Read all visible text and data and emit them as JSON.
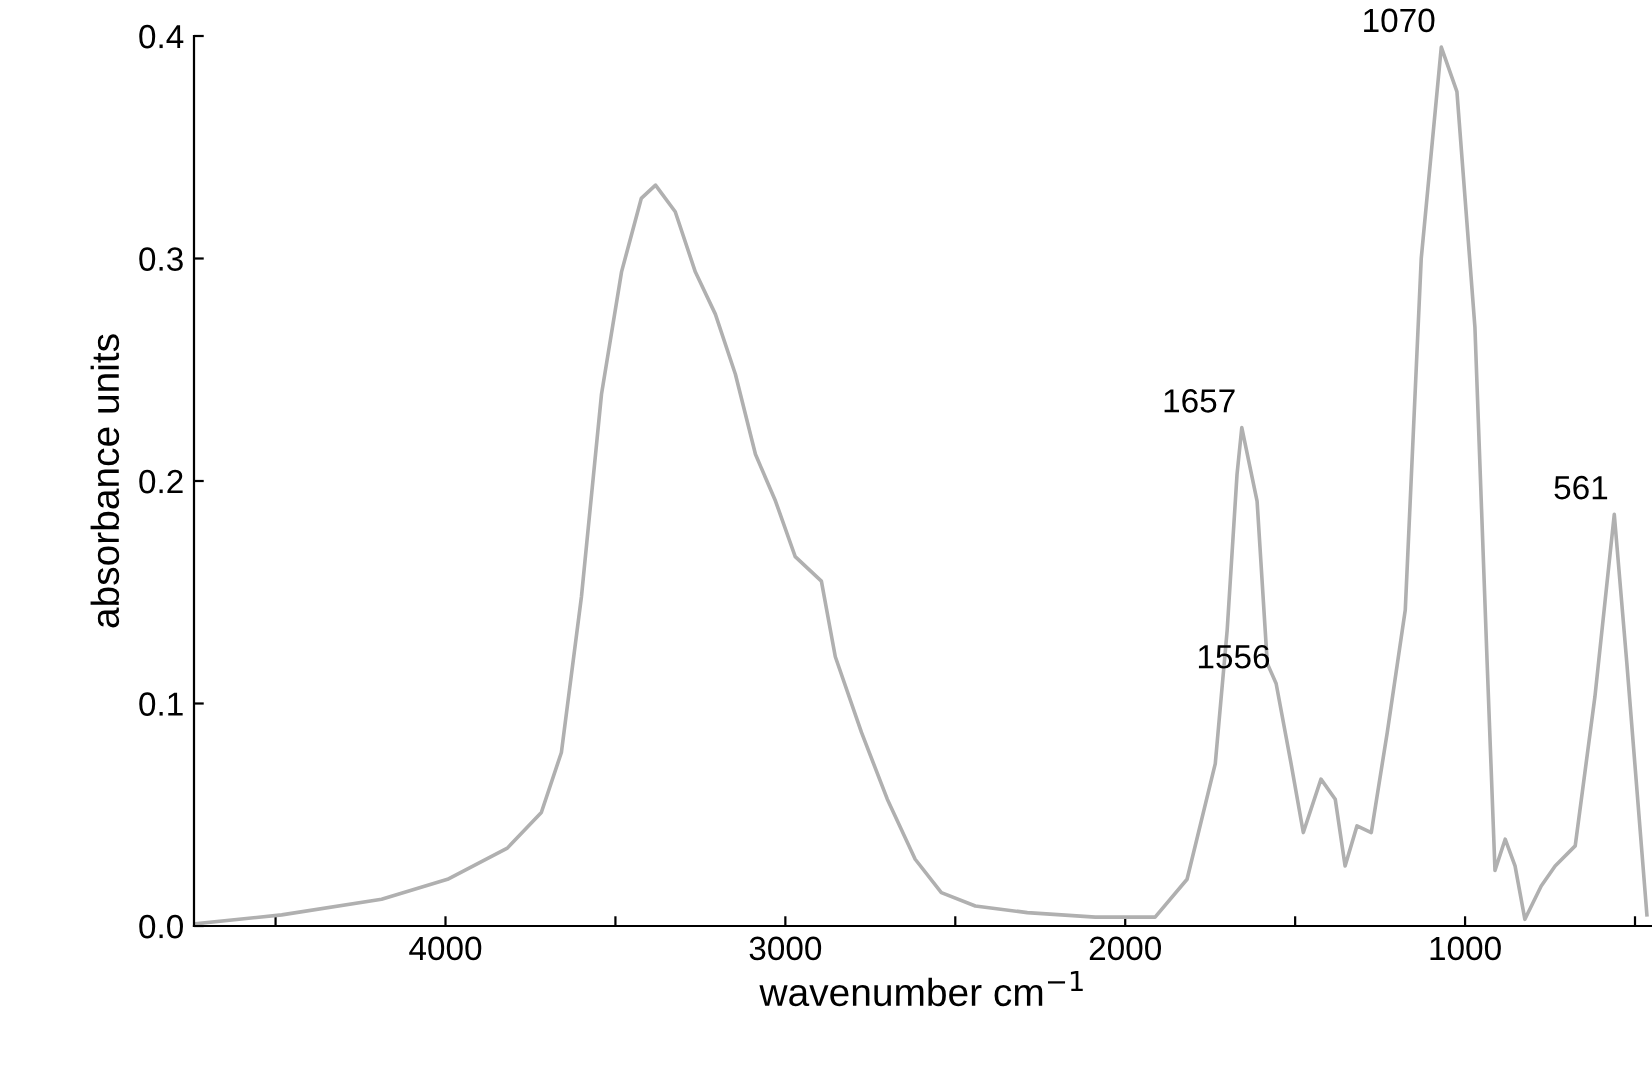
{
  "chart_data": {
    "type": "line",
    "xlabel": "wavenumber cm$^{−1}$",
    "ylabel": "absorbance units",
    "x": [
      4737,
      4482,
      4188,
      3994,
      3818,
      3718,
      3659,
      3600,
      3541,
      3482,
      3424,
      3382,
      3324,
      3265,
      3206,
      3147,
      3088,
      3029,
      2971,
      2894,
      2853,
      2776,
      2700,
      2618,
      2541,
      2441,
      2288,
      2088,
      1912,
      1818,
      1735,
      1700,
      1671,
      1657,
      1612,
      1582,
      1556,
      1512,
      1476,
      1424,
      1382,
      1353,
      1318,
      1276,
      1229,
      1176,
      1129,
      1070,
      1024,
      971,
      935,
      912,
      882,
      853,
      824,
      776,
      735,
      676,
      618,
      561,
      524,
      465
    ],
    "series": [
      {
        "color": "#b0b0b0",
        "values": [
          0.001,
          0.005,
          0.012,
          0.021,
          0.035,
          0.051,
          0.078,
          0.148,
          0.239,
          0.294,
          0.327,
          0.333,
          0.321,
          0.294,
          0.275,
          0.248,
          0.212,
          0.191,
          0.166,
          0.155,
          0.121,
          0.087,
          0.057,
          0.03,
          0.015,
          0.009,
          0.006,
          0.004,
          0.004,
          0.021,
          0.073,
          0.133,
          0.203,
          0.224,
          0.191,
          0.118,
          0.109,
          0.073,
          0.042,
          0.066,
          0.057,
          0.027,
          0.045,
          0.042,
          0.087,
          0.142,
          0.3,
          0.395,
          0.375,
          0.269,
          0.118,
          0.025,
          0.039,
          0.027,
          0.003,
          0.018,
          0.027,
          0.036,
          0.103,
          0.185,
          0.118,
          0.005
        ]
      }
    ],
    "xlim": [
      4740,
      450
    ],
    "ylim": [
      0,
      0.4
    ],
    "xticks": [
      {
        "value": 4500,
        "label": null
      },
      4000,
      {
        "value": 3500,
        "label": null
      },
      3000,
      {
        "value": 2500,
        "label": null
      },
      2000,
      {
        "value": 1500,
        "label": null
      },
      1000,
      {
        "value": 500,
        "label": null
      }
    ],
    "yticks": [
      {
        "value": 0,
        "label": "0.0"
      },
      0.1,
      0.2,
      0.3,
      0.4
    ],
    "annotations": [
      {
        "text": "1657",
        "x": 1657,
        "y": 0.224
      },
      {
        "text": "1556",
        "x": 1556,
        "y": 0.109
      },
      {
        "text": "1070",
        "x": 1070,
        "y": 0.395
      },
      {
        "text": "561",
        "x": 561,
        "y": 0.185
      }
    ],
    "grid": false,
    "marker": "none",
    "line_style": "solid"
  }
}
